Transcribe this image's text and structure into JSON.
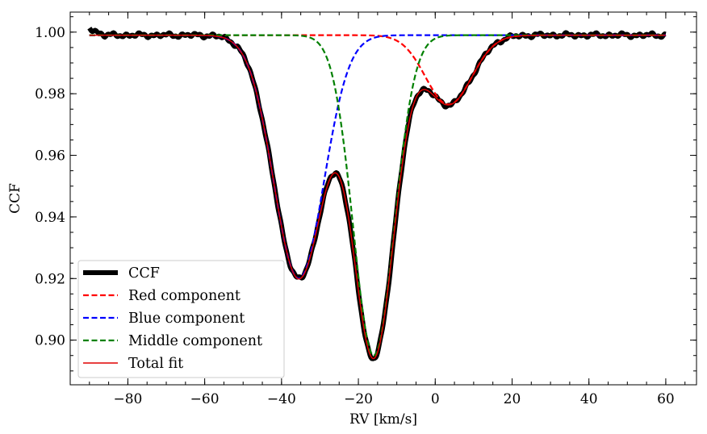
{
  "chart_data": {
    "type": "line",
    "title": "",
    "xlabel": "RV [km/s]",
    "ylabel": "CCF",
    "xlim": [
      -95,
      68
    ],
    "ylim": [
      0.8855,
      1.0065
    ],
    "xticks": [
      -80,
      -60,
      -40,
      -20,
      0,
      20,
      40,
      60
    ],
    "xtick_labels": [
      "−80",
      "−60",
      "−40",
      "−20",
      "0",
      "20",
      "40",
      "60"
    ],
    "yticks": [
      0.9,
      0.92,
      0.94,
      0.96,
      0.98,
      1.0
    ],
    "ytick_labels": [
      "0.90",
      "0.92",
      "0.94",
      "0.96",
      "0.98",
      "1.00"
    ],
    "x_minor_step": 5,
    "y_minor_step": 0.005,
    "legend_position": "lower-left",
    "model": {
      "baseline": 0.999,
      "x_range": [
        -90,
        60
      ],
      "components": [
        {
          "name": "Red component",
          "center": 3.5,
          "depth": 0.0225,
          "sigma": 6.0
        },
        {
          "name": "Blue component",
          "center": -35.5,
          "depth": 0.079,
          "sigma": 6.5
        },
        {
          "name": "Middle component",
          "center": -16.0,
          "depth": 0.104,
          "sigma": 5.3
        }
      ]
    },
    "series": [
      {
        "name": "CCF",
        "color": "#000000",
        "style": "solid",
        "width": "thick"
      },
      {
        "name": "Red component",
        "color": "#ff0000",
        "style": "dashed",
        "width": "medium"
      },
      {
        "name": "Blue component",
        "color": "#0000ff",
        "style": "dashed",
        "width": "medium"
      },
      {
        "name": "Middle component",
        "color": "#008000",
        "style": "dashed",
        "width": "medium"
      },
      {
        "name": "Total fit",
        "color": "#e00000",
        "style": "solid",
        "width": "thin"
      }
    ]
  }
}
